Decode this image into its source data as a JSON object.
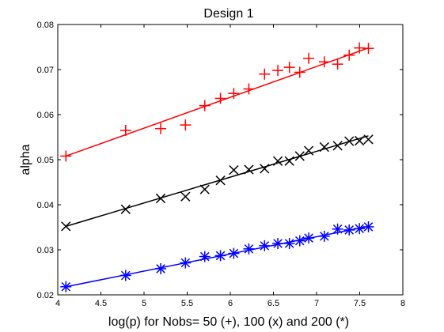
{
  "chart_data": {
    "type": "scatter",
    "title": "Design 1",
    "xlabel": "log(p) for Nobs= 50 (+), 100 (x) and 200 (*)",
    "ylabel": "alpha",
    "xlim": [
      4,
      8
    ],
    "ylim": [
      0.02,
      0.08
    ],
    "xticks": [
      "4",
      "4.5",
      "5",
      "5.5",
      "6",
      "6.5",
      "7",
      "7.5",
      "8"
    ],
    "yticks": [
      "0.02",
      "0.03",
      "0.04",
      "0.05",
      "0.06",
      "0.07",
      "0.08"
    ],
    "grid": false,
    "series": [
      {
        "marker": "+",
        "color": "#ff0000",
        "x": [
          4.094,
          4.787,
          5.193,
          5.48,
          5.704,
          5.886,
          6.04,
          6.215,
          6.397,
          6.551,
          6.685,
          6.805,
          6.909,
          7.09,
          7.244,
          7.378,
          7.497,
          7.601
        ],
        "y": [
          0.0508,
          0.0565,
          0.0569,
          0.0577,
          0.062,
          0.0636,
          0.0647,
          0.0657,
          0.069,
          0.0698,
          0.0705,
          0.0694,
          0.0725,
          0.0717,
          0.0712,
          0.0732,
          0.0748,
          0.0747
        ],
        "fit": [
          [
            4.094,
            0.0508
          ],
          [
            7.601,
            0.0748
          ]
        ]
      },
      {
        "marker": "x",
        "color": "#000000",
        "x": [
          4.094,
          4.787,
          5.193,
          5.48,
          5.704,
          5.886,
          6.04,
          6.215,
          6.397,
          6.551,
          6.685,
          6.805,
          6.909,
          7.09,
          7.244,
          7.378,
          7.497,
          7.601
        ],
        "y": [
          0.0352,
          0.039,
          0.0414,
          0.0418,
          0.0434,
          0.0454,
          0.0477,
          0.0478,
          0.048,
          0.0497,
          0.0497,
          0.0508,
          0.052,
          0.0528,
          0.0531,
          0.0541,
          0.0542,
          0.0545
        ],
        "fit": [
          [
            4.094,
            0.0352
          ],
          [
            7.601,
            0.0553
          ]
        ]
      },
      {
        "marker": "*",
        "color": "#0000ff",
        "x": [
          4.094,
          4.787,
          5.193,
          5.48,
          5.704,
          5.886,
          6.04,
          6.215,
          6.397,
          6.551,
          6.685,
          6.805,
          6.909,
          7.09,
          7.244,
          7.378,
          7.497,
          7.601
        ],
        "y": [
          0.0218,
          0.0243,
          0.0258,
          0.0271,
          0.0285,
          0.0287,
          0.0292,
          0.0302,
          0.0309,
          0.0314,
          0.0314,
          0.032,
          0.0326,
          0.033,
          0.0346,
          0.0344,
          0.0347,
          0.0351
        ],
        "fit": [
          [
            4.094,
            0.0218
          ],
          [
            7.601,
            0.0352
          ]
        ]
      }
    ]
  }
}
